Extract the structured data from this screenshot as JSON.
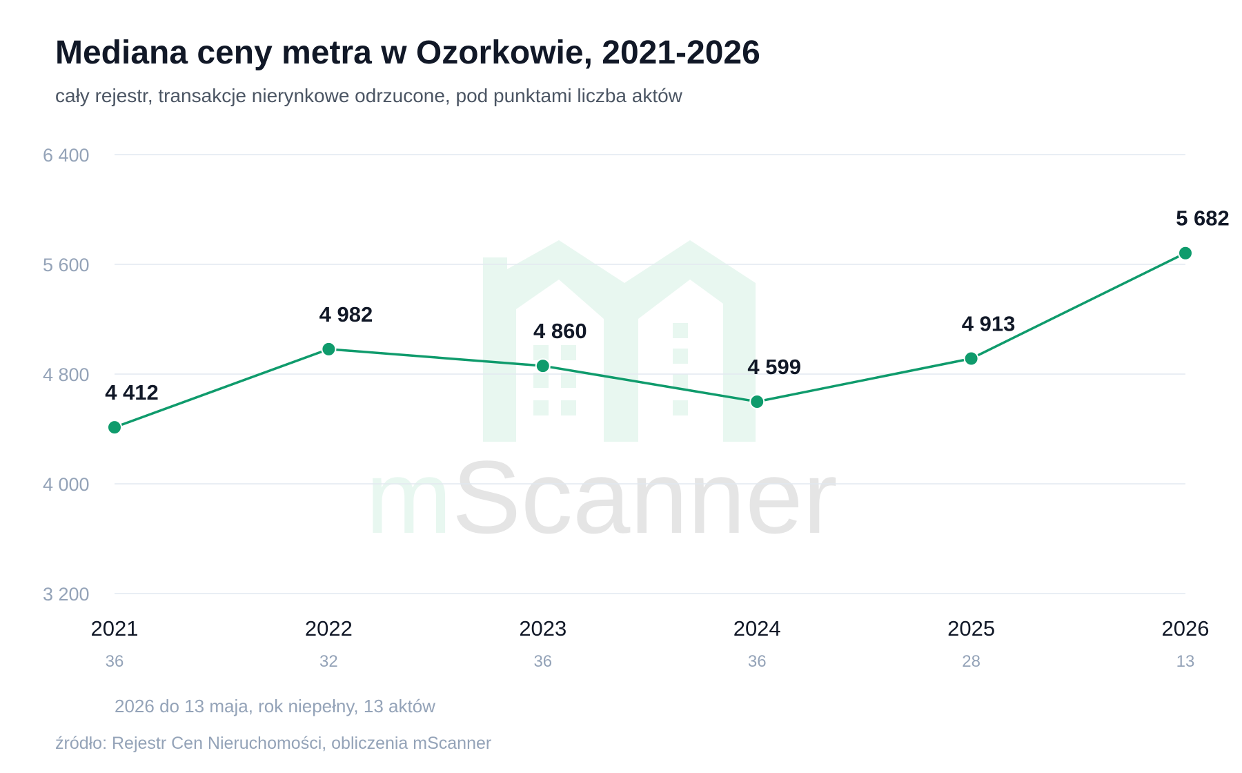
{
  "chart_data": {
    "type": "line",
    "title": "Mediana ceny metra w Ozorkowie, 2021-2026",
    "subtitle": "cały rejestr, transakcje nierynkowe odrzucone, pod punktami liczba aktów",
    "categories": [
      "2021",
      "2022",
      "2023",
      "2024",
      "2025",
      "2026"
    ],
    "series": [
      {
        "values": [
          4412,
          4982,
          4860,
          4599,
          4913,
          5682
        ]
      }
    ],
    "data_labels": [
      "4 412",
      "4 982",
      "4 860",
      "4 599",
      "4 913",
      "5 682"
    ],
    "counts": [
      "36",
      "32",
      "36",
      "36",
      "28",
      "13"
    ],
    "ylim": [
      3200,
      6400
    ],
    "yticks": [
      {
        "value": 3200,
        "label": "3 200"
      },
      {
        "value": 4000,
        "label": "4 000"
      },
      {
        "value": 4800,
        "label": "4 800"
      },
      {
        "value": 5600,
        "label": "5 600"
      },
      {
        "value": 6400,
        "label": "6 400"
      }
    ],
    "grid": true,
    "line_color": "#0f9b6c",
    "note": "2026 do 13 maja, rok niepełny, 13 aktów",
    "source": "źródło: Rejestr Cen Nieruchomości, obliczenia mScanner"
  },
  "watermark": {
    "text_part1": "m",
    "text_part2": "Scanner",
    "green_color": "#e8f7f0",
    "gray_color": "#e5e5e5"
  }
}
